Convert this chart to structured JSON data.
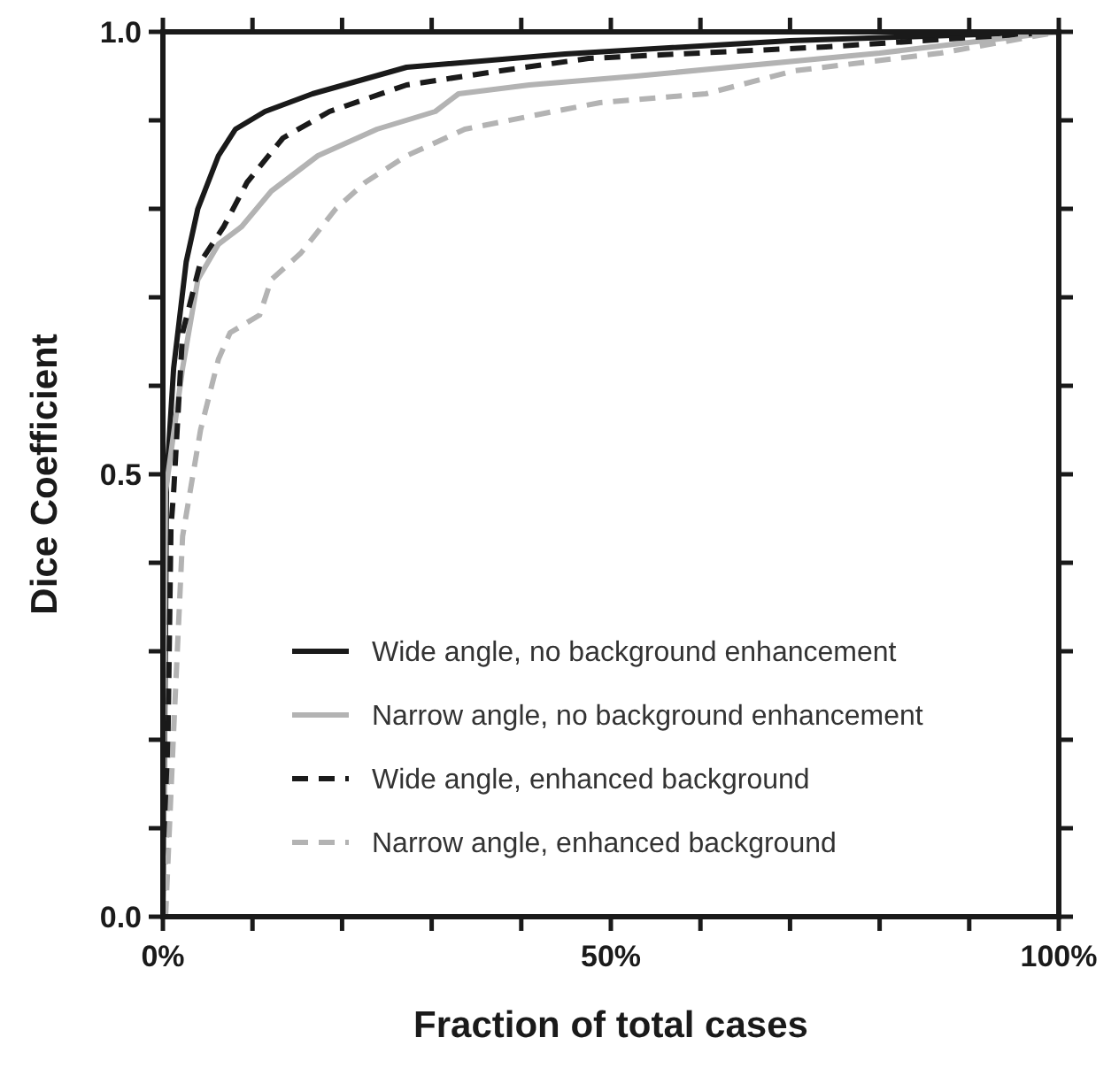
{
  "chart_data": {
    "type": "line",
    "xlabel": "Fraction of total cases",
    "ylabel": "Dice Coefficient",
    "xlim": [
      0,
      100
    ],
    "ylim": [
      0,
      1
    ],
    "xticks": [
      {
        "value": 0,
        "label": "0%"
      },
      {
        "value": 10,
        "label": null
      },
      {
        "value": 20,
        "label": null
      },
      {
        "value": 30,
        "label": null
      },
      {
        "value": 40,
        "label": null
      },
      {
        "value": 50,
        "label": "50%"
      },
      {
        "value": 60,
        "label": null
      },
      {
        "value": 70,
        "label": null
      },
      {
        "value": 80,
        "label": null
      },
      {
        "value": 90,
        "label": null
      },
      {
        "value": 100,
        "label": "100%"
      }
    ],
    "yticks": [
      {
        "value": 0,
        "label": "0.0"
      },
      {
        "value": 0.1,
        "label": null
      },
      {
        "value": 0.2,
        "label": null
      },
      {
        "value": 0.3,
        "label": null
      },
      {
        "value": 0.4,
        "label": null
      },
      {
        "value": 0.5,
        "label": "0.5"
      },
      {
        "value": 0.6,
        "label": null
      },
      {
        "value": 0.7,
        "label": null
      },
      {
        "value": 0.8,
        "label": null
      },
      {
        "value": 0.9,
        "label": null
      },
      {
        "value": 1,
        "label": "1.0"
      }
    ],
    "grid": false,
    "legend": "bottom",
    "marker": "none",
    "series": [
      {
        "name": "Wide angle, no background enhancement",
        "color": "#1a1a1a",
        "line_style": "solid",
        "x": [
          0,
          0.3,
          0.4,
          1.2,
          2.6,
          3.9,
          6.2,
          8.1,
          11.4,
          16.7,
          27.2,
          44.9,
          70,
          100
        ],
        "values": [
          0,
          0.33,
          0.49,
          0.62,
          0.74,
          0.8,
          0.86,
          0.89,
          0.91,
          0.93,
          0.96,
          0.975,
          0.99,
          1
        ]
      },
      {
        "name": "Narrow angle, no background enhancement",
        "color": "#b3b3b3",
        "line_style": "solid",
        "x": [
          0,
          0.3,
          2.2,
          3.9,
          6.2,
          8.8,
          12.1,
          17.3,
          23.9,
          30.4,
          33,
          40.9,
          52.8,
          80,
          100
        ],
        "values": [
          0,
          0.48,
          0.62,
          0.72,
          0.76,
          0.78,
          0.82,
          0.86,
          0.89,
          0.91,
          0.93,
          0.94,
          0.95,
          0.976,
          1
        ]
      },
      {
        "name": "Wide angle, enhanced background",
        "color": "#1a1a1a",
        "line_style": "dashed",
        "x": [
          0,
          0.4,
          0.9,
          1.2,
          2.2,
          4.2,
          6.8,
          9.4,
          13.4,
          18.6,
          27.2,
          37,
          47.5,
          74,
          100
        ],
        "values": [
          0,
          0.08,
          0.44,
          0.48,
          0.66,
          0.74,
          0.78,
          0.83,
          0.88,
          0.91,
          0.94,
          0.955,
          0.97,
          0.983,
          1
        ]
      },
      {
        "name": "Narrow angle, enhanced background",
        "color": "#b3b3b3",
        "line_style": "dashed",
        "x": [
          0.3,
          1.2,
          2.2,
          4.2,
          6.2,
          7.5,
          10.8,
          12.1,
          15.4,
          19.3,
          22.6,
          27.2,
          33.7,
          43.6,
          48.8,
          60.6,
          70.5,
          86.8,
          100
        ],
        "values": [
          0,
          0.21,
          0.43,
          0.55,
          0.63,
          0.66,
          0.68,
          0.72,
          0.75,
          0.8,
          0.83,
          0.86,
          0.89,
          0.91,
          0.92,
          0.93,
          0.956,
          0.976,
          1
        ]
      }
    ]
  }
}
